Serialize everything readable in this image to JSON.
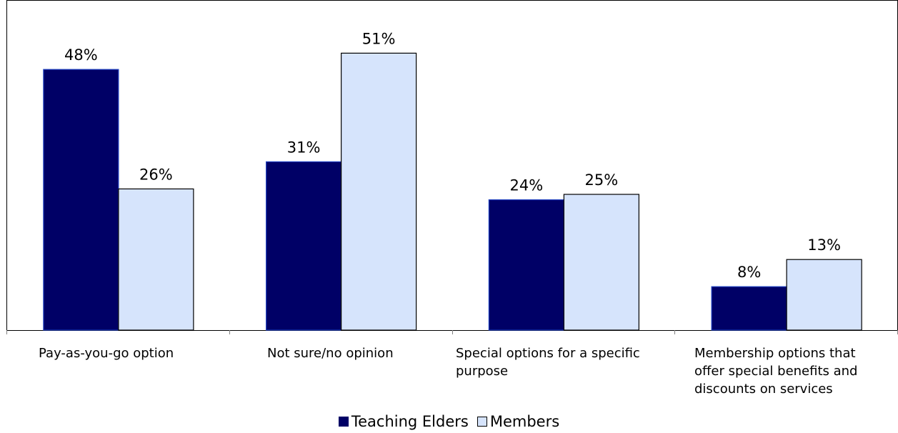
{
  "chart_data": {
    "type": "bar",
    "categories": [
      "Pay-as-you-go option",
      "Not sure/no opinion",
      "Special options for a specific purpose",
      "Membership options that offer special benefits and discounts on services"
    ],
    "series": [
      {
        "name": "Teaching Elders",
        "values": [
          48,
          31,
          24,
          8
        ],
        "labels": [
          "48%",
          "31%",
          "24%",
          "8%"
        ],
        "color": "#000066"
      },
      {
        "name": "Members",
        "values": [
          26,
          51,
          25,
          13
        ],
        "labels": [
          "26%",
          "51%",
          "25%",
          "13%"
        ],
        "color": "#D6E4FC"
      }
    ],
    "ylim": [
      0,
      57
    ],
    "unit": "%",
    "grid": false,
    "legend_position": "bottom"
  }
}
